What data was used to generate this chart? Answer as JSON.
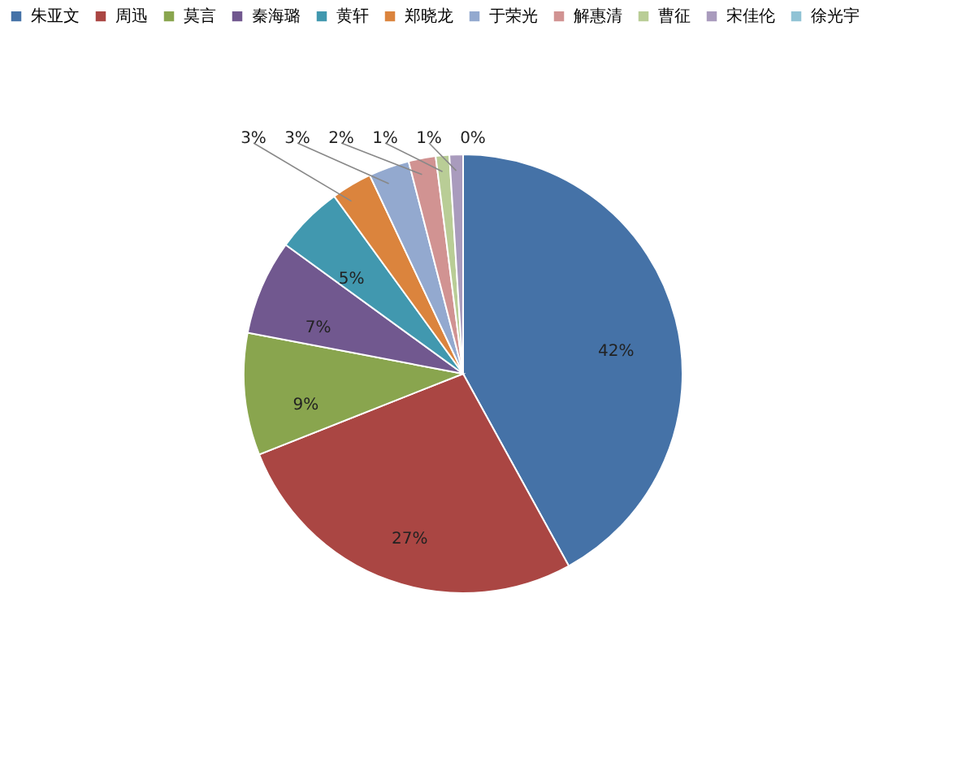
{
  "chart_data": {
    "type": "pie",
    "categories": [
      "朱亚文",
      "周迅",
      "莫言",
      "秦海璐",
      "黄轩",
      "郑晓龙",
      "于荣光",
      "解惠清",
      "曹征",
      "宋佳伦",
      "徐光宇"
    ],
    "values": [
      42,
      27,
      9,
      7,
      5,
      3,
      3,
      2,
      1,
      1,
      0
    ],
    "value_labels": [
      "42%",
      "27%",
      "9%",
      "7%",
      "5%",
      "3%",
      "3%",
      "2%",
      "1%",
      "1%",
      "0%"
    ],
    "colors": [
      "#4572a7",
      "#aa4643",
      "#89a54e",
      "#71588f",
      "#4198af",
      "#db843d",
      "#93a9cf",
      "#d19392",
      "#b9cd96",
      "#a99bbd",
      "#91c3d5"
    ],
    "legend": "top"
  }
}
